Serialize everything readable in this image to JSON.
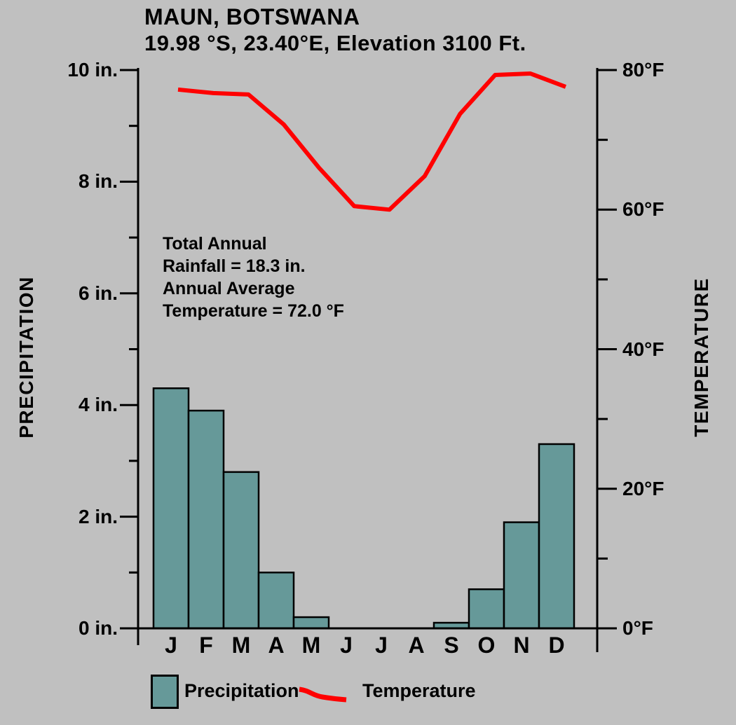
{
  "chart_data": {
    "type": "combo-bar-line",
    "title": "MAUN, BOTSWANA",
    "subtitle": "19.98 °S, 23.40°E, Elevation 3100 Ft.",
    "categories": [
      "J",
      "F",
      "M",
      "A",
      "M",
      "J",
      "J",
      "A",
      "S",
      "O",
      "N",
      "D"
    ],
    "series": [
      {
        "name": "Precipitation",
        "type": "bar",
        "axis": "left",
        "unit": "in.",
        "color": "#669999",
        "values": [
          4.3,
          3.9,
          2.8,
          1.0,
          0.2,
          0.0,
          0.0,
          0.0,
          0.1,
          0.7,
          1.9,
          3.3
        ]
      },
      {
        "name": "Temperature",
        "type": "line",
        "axis": "right",
        "unit": "°F",
        "color": "#ff0000",
        "values": [
          77.2,
          76.7,
          76.5,
          72.2,
          66.0,
          60.5,
          60.0,
          64.8,
          73.7,
          79.3,
          79.5,
          77.6
        ]
      }
    ],
    "left_axis": {
      "label": "PRECIPITATION",
      "range": [
        0,
        10
      ],
      "major_step": 2,
      "minor_step": 1,
      "tick_labels": [
        "0 in.",
        "2 in.",
        "4 in.",
        "6 in.",
        "8 in.",
        "10 in."
      ]
    },
    "right_axis": {
      "label": "TEMPERATURE",
      "range": [
        0,
        80
      ],
      "major_step": 20,
      "minor_step": 10,
      "tick_labels": [
        "0°F",
        "20°F",
        "40°F",
        "60°F",
        "80°F"
      ]
    },
    "annotation": {
      "lines": [
        "Total Annual",
        "Rainfall = 18.3 in.",
        "Annual Average",
        "Temperature = 72.0 °F"
      ]
    },
    "legend": {
      "items": [
        {
          "label": "Precipitation",
          "swatch": "bar"
        },
        {
          "label": "Temperature",
          "swatch": "line"
        }
      ]
    },
    "background": "#c0c0c0",
    "text_color": "#000000",
    "axis_color": "#000000",
    "grid": "off",
    "legend_position": "bottom"
  }
}
